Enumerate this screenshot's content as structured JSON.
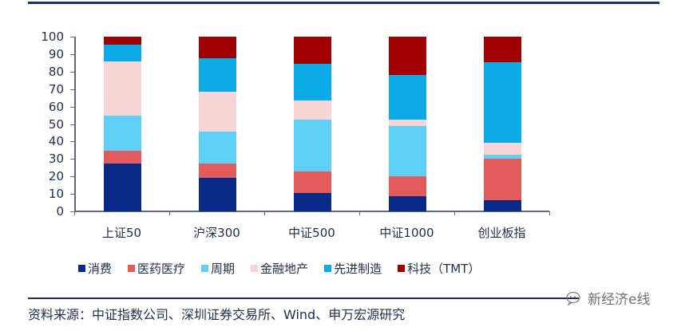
{
  "chart_data": {
    "type": "bar",
    "stacked": true,
    "title": "",
    "xlabel": "",
    "ylabel": "",
    "ylim": [
      0,
      100
    ],
    "yticks": [
      0,
      10,
      20,
      30,
      40,
      50,
      60,
      70,
      80,
      90,
      100
    ],
    "grid": false,
    "legend_position": "bottom",
    "categories": [
      "上证50",
      "沪深300",
      "中证500",
      "中证1000",
      "创业板指"
    ],
    "series": [
      {
        "name": "消费",
        "color": "#0a2a8a",
        "values": [
          27.5,
          19.1,
          10.7,
          8.8,
          6.6
        ]
      },
      {
        "name": "医药医疗",
        "color": "#e25a5a",
        "values": [
          7.3,
          8.1,
          12.3,
          11.2,
          23.6
        ]
      },
      {
        "name": "周期",
        "color": "#5ed0f5",
        "values": [
          19.8,
          18.7,
          29.7,
          28.8,
          2.3
        ]
      },
      {
        "name": "金融地产",
        "color": "#f7d4d6",
        "values": [
          31.1,
          22.5,
          10.8,
          3.6,
          6.9
        ]
      },
      {
        "name": "先进制造",
        "color": "#0aabe6",
        "values": [
          9.8,
          19.1,
          21.2,
          25.9,
          45.8
        ]
      },
      {
        "name": "科技（TMT）",
        "color": "#a00000",
        "values": [
          4.5,
          12.5,
          15.3,
          21.7,
          14.8
        ]
      }
    ]
  },
  "legend": [
    {
      "label": "消费",
      "color": "#0a2a8a"
    },
    {
      "label": "医药医疗",
      "color": "#e25a5a"
    },
    {
      "label": "周期",
      "color": "#5ed0f5"
    },
    {
      "label": "金融地产",
      "color": "#f7d4d6"
    },
    {
      "label": "先进制造",
      "color": "#0aabe6"
    },
    {
      "label": "科技（TMT）",
      "color": "#a00000"
    }
  ],
  "source": "资料来源：中证指数公司、深圳证券交易所、Wind、申万宏源研究",
  "watermark": "新经济e线"
}
